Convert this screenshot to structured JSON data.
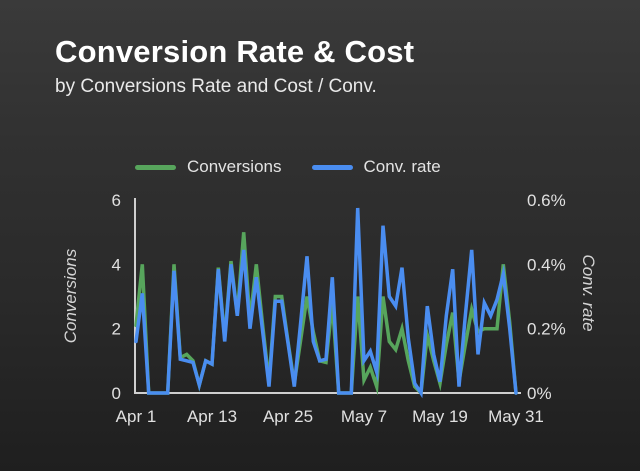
{
  "header": {
    "title": "Conversion Rate & Cost",
    "subtitle": "by Conversions Rate and Cost / Conv."
  },
  "legend": [
    {
      "label": "Conversions",
      "color": "#57a55c"
    },
    {
      "label": "Conv. rate",
      "color": "#4a8df0"
    }
  ],
  "colors": {
    "conversions_line": "#57a55c",
    "conv_rate_line": "#4a8df0",
    "axis_line": "#cfcfcf",
    "tick_text": "#e0e0e0",
    "axis_title_text": "#d4d4d4"
  },
  "chart_data": {
    "type": "line",
    "title": "Conversion Rate & Cost",
    "x_count": 61,
    "x_tick_labels": [
      "Apr 1",
      "Apr 13",
      "Apr 25",
      "May 7",
      "May 19",
      "May 31"
    ],
    "x_tick_indices": [
      0,
      12,
      24,
      36,
      48,
      60
    ],
    "grid": "off",
    "legend_position": "top",
    "left_axis": {
      "title": "Conversions",
      "range": [
        0,
        6
      ],
      "ticks": [
        0,
        2,
        4,
        6
      ],
      "tick_labels": [
        "0",
        "2",
        "4",
        "6"
      ]
    },
    "right_axis": {
      "title": "Conv. rate",
      "range": [
        0,
        0.6
      ],
      "ticks": [
        0,
        0.2,
        0.4,
        0.6
      ],
      "tick_labels": [
        "0%",
        "0.2%",
        "0.4%",
        "0.6%"
      ]
    },
    "series": [
      {
        "name": "Conversions",
        "axis": "left",
        "color": "#57a55c",
        "values": [
          2.1,
          4.0,
          0,
          0,
          0,
          0,
          4.0,
          1.1,
          1.2,
          1.0,
          0.25,
          1.0,
          0.9,
          3.9,
          1.7,
          4.1,
          2.45,
          5.0,
          2.25,
          4.0,
          2.1,
          0.35,
          3.0,
          3.0,
          1.6,
          0.3,
          1.65,
          3.0,
          1.9,
          1.0,
          0.95,
          2.8,
          0,
          0,
          0,
          3.0,
          0.4,
          0.8,
          0.2,
          3.0,
          1.6,
          1.35,
          2.0,
          1.0,
          0.2,
          0,
          1.8,
          1.0,
          0.3,
          1.5,
          2.5,
          0.35,
          1.5,
          2.6,
          1.9,
          2.0,
          2.0,
          2.0,
          4.0,
          2.2,
          0
        ]
      },
      {
        "name": "Conv. rate",
        "axis": "right",
        "color": "#4a8df0",
        "values": [
          0.16,
          0.31,
          0,
          0,
          0,
          0,
          0.38,
          0.105,
          0.1,
          0.095,
          0.025,
          0.1,
          0.09,
          0.385,
          0.16,
          0.4,
          0.24,
          0.445,
          0.2,
          0.36,
          0.19,
          0.02,
          0.285,
          0.285,
          0.155,
          0.02,
          0.22,
          0.425,
          0.16,
          0.1,
          0.105,
          0.36,
          0,
          0,
          0,
          0.575,
          0.1,
          0.13,
          0.065,
          0.52,
          0.3,
          0.27,
          0.39,
          0.17,
          0.03,
          0,
          0.27,
          0.12,
          0.035,
          0.24,
          0.385,
          0.02,
          0.24,
          0.445,
          0.12,
          0.28,
          0.24,
          0.29,
          0.37,
          0.2,
          0
        ]
      }
    ]
  }
}
